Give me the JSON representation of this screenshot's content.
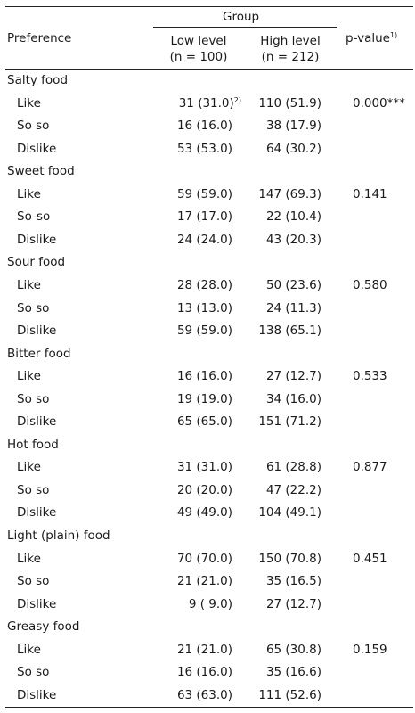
{
  "header": {
    "preference": "Preference",
    "group": "Group",
    "low_line1": "Low level",
    "low_line2": "(n = 100)",
    "high_line1": "High level",
    "high_line2": "(n = 212)",
    "pvalue": "p-value",
    "pvalue_note": "1)"
  },
  "categories": [
    {
      "name": "Salty food",
      "pvalue": "0.000***",
      "rows": [
        {
          "label": "Like",
          "low": "31 (31.0)",
          "low_note": "2)",
          "high": "110 (51.9)"
        },
        {
          "label": "So so",
          "low": "16 (16.0)",
          "high": "38 (17.9)"
        },
        {
          "label": "Dislike",
          "low": "53 (53.0)",
          "high": "64 (30.2)"
        }
      ]
    },
    {
      "name": "Sweet food",
      "pvalue": "0.141",
      "rows": [
        {
          "label": "Like",
          "low": "59 (59.0)",
          "high": "147 (69.3)"
        },
        {
          "label": "So-so",
          "low": "17 (17.0)",
          "high": "22 (10.4)"
        },
        {
          "label": "Dislike",
          "low": "24 (24.0)",
          "high": "43 (20.3)"
        }
      ]
    },
    {
      "name": "Sour food",
      "pvalue": "0.580",
      "rows": [
        {
          "label": "Like",
          "low": "28 (28.0)",
          "high": "50 (23.6)"
        },
        {
          "label": "So so",
          "low": "13 (13.0)",
          "high": "24 (11.3)"
        },
        {
          "label": "Dislike",
          "low": "59 (59.0)",
          "high": "138 (65.1)"
        }
      ]
    },
    {
      "name": "Bitter food",
      "pvalue": "0.533",
      "rows": [
        {
          "label": "Like",
          "low": "16 (16.0)",
          "high": "27 (12.7)"
        },
        {
          "label": "So so",
          "low": "19 (19.0)",
          "high": "34 (16.0)"
        },
        {
          "label": "Dislike",
          "low": "65 (65.0)",
          "high": "151 (71.2)"
        }
      ]
    },
    {
      "name": "Hot food",
      "pvalue": "0.877",
      "rows": [
        {
          "label": "Like",
          "low": "31 (31.0)",
          "high": "61 (28.8)"
        },
        {
          "label": "So so",
          "low": "20 (20.0)",
          "high": "47 (22.2)"
        },
        {
          "label": "Dislike",
          "low": "49 (49.0)",
          "high": "104 (49.1)"
        }
      ]
    },
    {
      "name": "Light (plain) food",
      "pvalue": "0.451",
      "rows": [
        {
          "label": "Like",
          "low": "70 (70.0)",
          "high": "150 (70.8)"
        },
        {
          "label": "So so",
          "low": "21 (21.0)",
          "high": "35 (16.5)"
        },
        {
          "label": "Dislike",
          "low": "9 ( 9.0)",
          "high": "27 (12.7)"
        }
      ]
    },
    {
      "name": "Greasy food",
      "pvalue": "0.159",
      "rows": [
        {
          "label": "Like",
          "low": "21 (21.0)",
          "high": "65 (30.8)"
        },
        {
          "label": "So so",
          "low": "16 (16.0)",
          "high": "35 (16.6)"
        },
        {
          "label": "Dislike",
          "low": "63 (63.0)",
          "high": "111 (52.6)"
        }
      ]
    }
  ]
}
